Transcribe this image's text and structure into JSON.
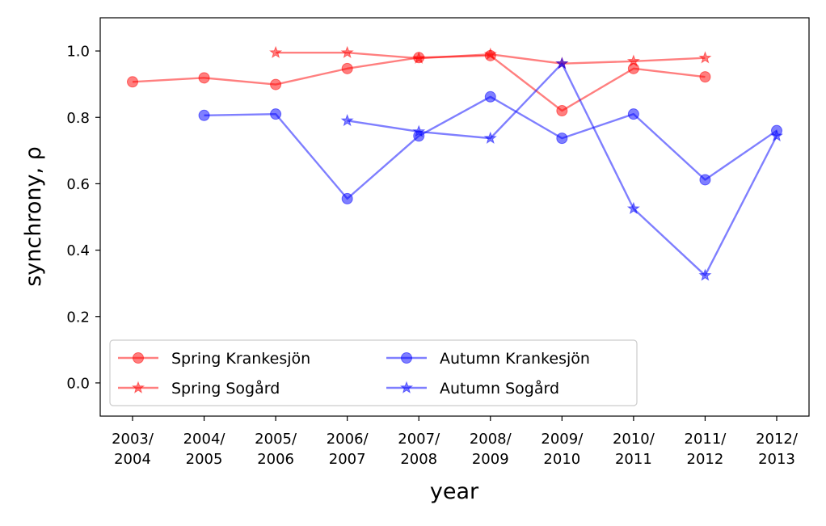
{
  "chart_data": {
    "type": "line",
    "xlabel": "year",
    "ylabel": "synchrony, ρ",
    "categories": [
      [
        "2003/",
        "2004"
      ],
      [
        "2004/",
        "2005"
      ],
      [
        "2005/",
        "2006"
      ],
      [
        "2006/",
        "2007"
      ],
      [
        "2007/",
        "2008"
      ],
      [
        "2008/",
        "2009"
      ],
      [
        "2009/",
        "2010"
      ],
      [
        "2010/",
        "2011"
      ],
      [
        "2011/",
        "2012"
      ],
      [
        "2012/",
        "2013"
      ]
    ],
    "ylim": [
      -0.1,
      1.1
    ],
    "yticks": [
      0.0,
      0.2,
      0.4,
      0.6,
      0.8,
      1.0
    ],
    "ytick_labels": [
      "0.0",
      "0.2",
      "0.4",
      "0.6",
      "0.8",
      "1.0"
    ],
    "grid": false,
    "legend_position": "lower-left",
    "legend_columns": 2,
    "series": [
      {
        "name": "Spring Krankesjön",
        "color": "#ff0000",
        "marker": "circle",
        "values": [
          0.907,
          0.919,
          0.899,
          0.947,
          0.98,
          0.986,
          0.82,
          0.947,
          0.922,
          null
        ]
      },
      {
        "name": "Spring Sogård",
        "color": "#ff0000",
        "marker": "star",
        "values": [
          null,
          null,
          0.995,
          0.995,
          0.978,
          0.99,
          0.962,
          0.969,
          0.979,
          null
        ]
      },
      {
        "name": "Autumn Krankesjön",
        "color": "#0000ff",
        "marker": "circle",
        "values": [
          null,
          0.806,
          0.81,
          0.555,
          0.744,
          0.862,
          0.737,
          0.81,
          0.612,
          0.76
        ]
      },
      {
        "name": "Autumn Sogård",
        "color": "#0000ff",
        "marker": "star",
        "values": [
          null,
          null,
          null,
          0.79,
          0.757,
          0.737,
          0.962,
          0.525,
          0.324,
          0.744
        ]
      }
    ]
  }
}
